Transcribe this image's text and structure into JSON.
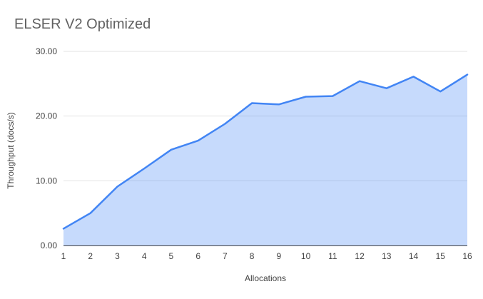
{
  "chart_data": {
    "type": "area",
    "title": "ELSER V2 Optimized",
    "xlabel": "Allocations",
    "ylabel": "Throughput (docs/s)",
    "x": [
      1,
      2,
      3,
      4,
      5,
      6,
      7,
      8,
      9,
      10,
      11,
      12,
      13,
      14,
      15,
      16
    ],
    "values": [
      2.6,
      5.0,
      9.1,
      11.9,
      14.8,
      16.2,
      18.8,
      22.0,
      21.8,
      23.0,
      23.1,
      25.4,
      24.3,
      26.1,
      23.8,
      26.4
    ],
    "ylim": [
      0,
      30
    ],
    "yticks": [
      0,
      10,
      20,
      30
    ],
    "ytick_labels": [
      "0.00",
      "10.00",
      "20.00",
      "30.00"
    ],
    "grid": true,
    "legend_position": "none",
    "colors": {
      "line": "#4285f4",
      "fill": "#4285f4",
      "fill_opacity": 0.3,
      "gridline": "#e3e3e3",
      "baseline": "#424242",
      "title_text": "#616161",
      "tick_text": "#424242"
    }
  }
}
